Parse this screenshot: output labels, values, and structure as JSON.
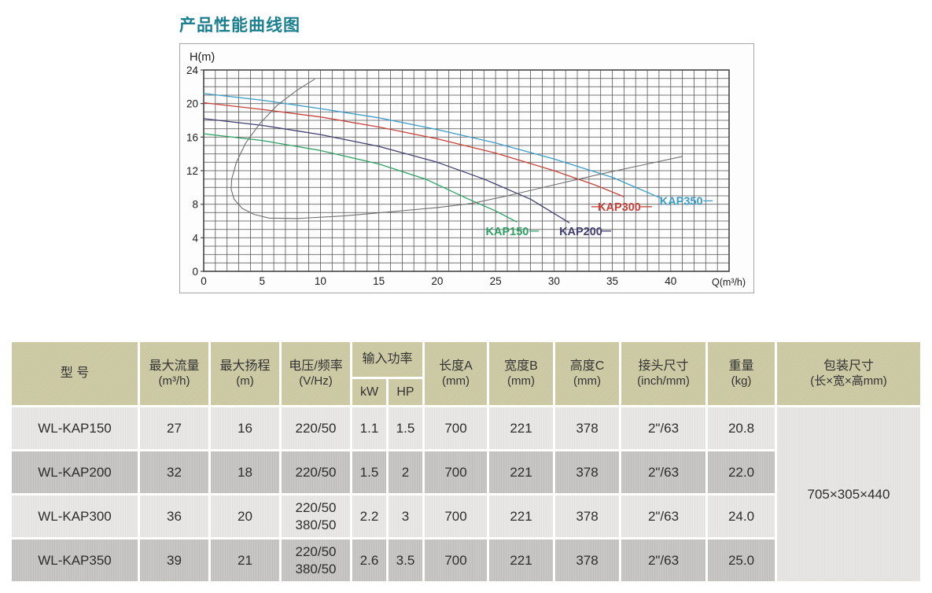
{
  "page": {
    "title": "产品性能曲线图"
  },
  "colors": {
    "title": "#1a7f8e",
    "grid": "#454545",
    "axis_text": "#1a1a1a",
    "kap150": "#2ba164",
    "kap200": "#3f3f72",
    "kap300": "#c8423a",
    "kap350": "#3a9dc8",
    "power_curve": "#6e6e6e",
    "header_bg": "#cac7a1",
    "row_light": "#e8e7e5",
    "row_dark": "#c8c7c5"
  },
  "chart_data": {
    "type": "line",
    "title": "产品性能曲线图",
    "xlabel": "Q(m³/h)",
    "ylabel": "H(m)",
    "xlim": [
      0,
      45
    ],
    "ylim": [
      0,
      24
    ],
    "xticks": [
      0,
      5,
      10,
      15,
      20,
      25,
      30,
      35,
      40
    ],
    "yticks": [
      0,
      4,
      8,
      12,
      16,
      20,
      24
    ],
    "grid": "on",
    "grid_step": 1,
    "legend_position": "labels-on-curves",
    "series": [
      {
        "name": "KAP150",
        "color": "#2ba164",
        "points": [
          [
            0,
            16.4
          ],
          [
            5,
            15.6
          ],
          [
            10,
            14.4
          ],
          [
            15,
            12.8
          ],
          [
            19,
            11.0
          ],
          [
            22.7,
            8.6
          ],
          [
            25,
            7.2
          ],
          [
            26.8,
            5.9
          ]
        ],
        "label_pos": [
          26,
          4.8
        ],
        "label_dashes": [
          [
            [
              27.9,
              4.8
            ],
            [
              28.7,
              4.8
            ]
          ]
        ]
      },
      {
        "name": "KAP200",
        "color": "#3f3f72",
        "points": [
          [
            0,
            18.2
          ],
          [
            5,
            17.4
          ],
          [
            10,
            16.3
          ],
          [
            15,
            14.9
          ],
          [
            20,
            13.0
          ],
          [
            24,
            11.0
          ],
          [
            28,
            8.6
          ],
          [
            31.3,
            5.8
          ]
        ],
        "label_pos": [
          32.3,
          4.8
        ],
        "label_dashes": [
          [
            [
              34.1,
              4.8
            ],
            [
              34.9,
              4.8
            ]
          ]
        ]
      },
      {
        "name": "KAP300",
        "color": "#c8423a",
        "points": [
          [
            0,
            20.1
          ],
          [
            5,
            19.3
          ],
          [
            10,
            18.4
          ],
          [
            15,
            17.2
          ],
          [
            20,
            15.8
          ],
          [
            25,
            14.1
          ],
          [
            30,
            12.0
          ],
          [
            33.5,
            10.3
          ],
          [
            36,
            8.9
          ]
        ],
        "label_pos": [
          35.6,
          7.7
        ],
        "label_dashes": [
          [
            [
              33.2,
              7.7
            ],
            [
              33.9,
              7.7
            ]
          ],
          [
            [
              37.4,
              7.7
            ],
            [
              38.4,
              7.7
            ]
          ]
        ]
      },
      {
        "name": "KAP350",
        "color": "#3a9dc8",
        "points": [
          [
            0,
            21.2
          ],
          [
            5,
            20.4
          ],
          [
            10,
            19.4
          ],
          [
            15,
            18.3
          ],
          [
            20,
            16.9
          ],
          [
            25,
            15.3
          ],
          [
            30,
            13.4
          ],
          [
            35,
            11.2
          ],
          [
            39.2,
            8.7
          ]
        ],
        "label_pos": [
          40.9,
          8.4
        ],
        "label_dashes": [
          [
            [
              42.8,
              8.4
            ],
            [
              43.6,
              8.4
            ]
          ]
        ]
      },
      {
        "name": "power-curve",
        "color": "#6e6e6e",
        "points": [
          [
            9.5,
            22.9
          ],
          [
            8,
            21.6
          ],
          [
            6.3,
            19.8
          ],
          [
            4.8,
            17.6
          ],
          [
            3.6,
            15.3
          ],
          [
            2.8,
            13.0
          ],
          [
            2.4,
            11.0
          ],
          [
            2.35,
            9.8
          ],
          [
            2.6,
            8.6
          ],
          [
            3.3,
            7.5
          ],
          [
            4.3,
            6.8
          ],
          [
            5.6,
            6.35
          ],
          [
            8,
            6.3
          ],
          [
            12,
            6.6
          ],
          [
            16,
            7.1
          ],
          [
            20,
            7.6
          ],
          [
            23,
            8.1
          ],
          [
            26,
            9.0
          ],
          [
            30,
            10.3
          ],
          [
            34,
            11.6
          ],
          [
            38,
            12.8
          ],
          [
            41,
            13.7
          ]
        ],
        "label_pos": null,
        "label_dashes": []
      }
    ]
  },
  "table": {
    "header": [
      {
        "title": "型 号",
        "unit": ""
      },
      {
        "title": "最大流量",
        "unit": "(m³/h)"
      },
      {
        "title": "最大扬程",
        "unit": "(m)"
      },
      {
        "title": "电压/频率",
        "unit": "(V/Hz)"
      },
      {
        "title": "输入功率",
        "subs": [
          "kW",
          "HP"
        ]
      },
      {
        "title": "长度A",
        "unit": "(mm)"
      },
      {
        "title": "宽度B",
        "unit": "(mm)"
      },
      {
        "title": "高度C",
        "unit": "(mm)"
      },
      {
        "title": "接头尺寸",
        "unit": "(inch/mm)"
      },
      {
        "title": "重量",
        "unit": "(kg)"
      },
      {
        "title": "包装尺寸",
        "unit": "(长×宽×高mm)"
      }
    ],
    "rows": [
      {
        "model": "WL-KAP150",
        "max_flow": "27",
        "max_head": "16",
        "voltage": [
          "220/50"
        ],
        "kw": "1.1",
        "hp": "1.5",
        "length_a": "700",
        "width_b": "221",
        "height_c": "378",
        "connector": "2\"/63",
        "weight": "20.8"
      },
      {
        "model": "WL-KAP200",
        "max_flow": "32",
        "max_head": "18",
        "voltage": [
          "220/50"
        ],
        "kw": "1.5",
        "hp": "2",
        "length_a": "700",
        "width_b": "221",
        "height_c": "378",
        "connector": "2\"/63",
        "weight": "22.0"
      },
      {
        "model": "WL-KAP300",
        "max_flow": "36",
        "max_head": "20",
        "voltage": [
          "220/50",
          "380/50"
        ],
        "kw": "2.2",
        "hp": "3",
        "length_a": "700",
        "width_b": "221",
        "height_c": "378",
        "connector": "2\"/63",
        "weight": "24.0"
      },
      {
        "model": "WL-KAP350",
        "max_flow": "39",
        "max_head": "21",
        "voltage": [
          "220/50",
          "380/50"
        ],
        "kw": "2.6",
        "hp": "3.5",
        "length_a": "700",
        "width_b": "221",
        "height_c": "378",
        "connector": "2\"/63",
        "weight": "25.0"
      }
    ],
    "package_size": "705×305×440"
  }
}
